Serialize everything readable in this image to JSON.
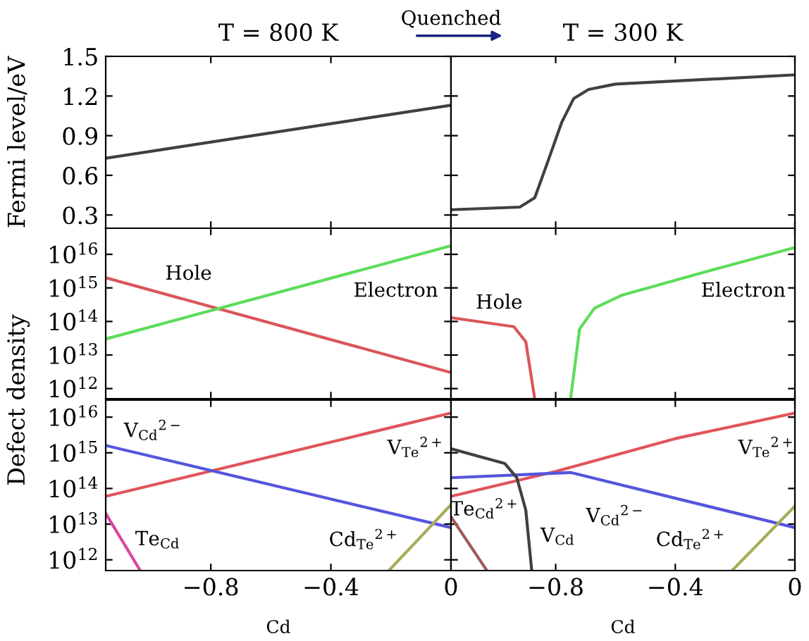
{
  "chart_data": [
    {
      "type": "line",
      "title": "T = 800 K",
      "ylabel": "Fermi level/eV",
      "xlim": [
        -1.15,
        0
      ],
      "ylim": [
        0.2,
        1.5
      ],
      "xticks": [
        {
          "value": -0.8,
          "label": null
        },
        {
          "value": -0.4,
          "label": null
        },
        {
          "value": 0,
          "label": null
        }
      ],
      "yticks": [
        0.3,
        0.6,
        0.9,
        1.2,
        1.5
      ],
      "tick_labels": "y",
      "series": [
        {
          "color": "#404040",
          "x": [
            -1.15,
            0
          ],
          "values": [
            0.73,
            1.13
          ]
        }
      ],
      "annotations": [
        "Quenched"
      ]
    },
    {
      "type": "line",
      "title": "T = 300 K",
      "xlim": [
        -1.15,
        0
      ],
      "ylim": [
        0.2,
        1.5
      ],
      "xticks": [
        {
          "value": -0.8,
          "label": null
        },
        {
          "value": -0.4,
          "label": null
        },
        {
          "value": 0,
          "label": null
        }
      ],
      "yticks": [
        {
          "value": 0.3,
          "label": null
        },
        {
          "value": 0.6,
          "label": null
        },
        {
          "value": 0.9,
          "label": null
        },
        {
          "value": 1.2,
          "label": null
        },
        {
          "value": 1.5,
          "label": null
        }
      ],
      "tick_labels": false,
      "series": [
        {
          "color": "#404040",
          "x": [
            -1.15,
            -0.92,
            -0.87,
            -0.83,
            -0.78,
            -0.74,
            -0.69,
            -0.6,
            0
          ],
          "values": [
            0.34,
            0.36,
            0.43,
            0.68,
            1.0,
            1.18,
            1.25,
            1.29,
            1.36
          ]
        }
      ]
    },
    {
      "type": "line",
      "log": "y",
      "xlim": [
        -1.15,
        0
      ],
      "ylim": [
        500000000000.0,
        6e+16
      ],
      "xticks": [
        {
          "value": -0.8,
          "label": null
        },
        {
          "value": -0.4,
          "label": null
        },
        {
          "value": 0,
          "label": null
        }
      ],
      "yticks": [
        {
          "value": 1000000000000.0,
          "label": "10$^{12}$"
        },
        {
          "value": 10000000000000.0,
          "label": "10$^{13}$"
        },
        {
          "value": 100000000000000.0,
          "label": "10$^{14}$"
        },
        {
          "value": 1000000000000000.0,
          "label": "10$^{15}$"
        },
        {
          "value": 1e+16,
          "label": "10$^{16}$"
        }
      ],
      "tick_labels": "y",
      "series": [
        {
          "color": "#d9565a",
          "x": [
            -1.15,
            0
          ],
          "values": [
            2000000000000000.0,
            3000000000000.0
          ]
        },
        {
          "color": "#5ddc5a",
          "x": [
            -1.15,
            0
          ],
          "values": [
            30000000000000.0,
            1.8e+16
          ]
        }
      ],
      "annotations": [
        "Hole",
        "Electron"
      ]
    },
    {
      "type": "line",
      "log": "y",
      "xlim": [
        -1.15,
        0
      ],
      "ylim": [
        500000000000.0,
        6e+16
      ],
      "xticks": [
        {
          "value": -0.8,
          "label": null
        },
        {
          "value": -0.4,
          "label": null
        },
        {
          "value": 0,
          "label": null
        }
      ],
      "yticks": [
        {
          "value": 1000000000000.0,
          "label": null
        },
        {
          "value": 10000000000000.0,
          "label": null
        },
        {
          "value": 100000000000000.0,
          "label": null
        },
        {
          "value": 1000000000000000.0,
          "label": null
        },
        {
          "value": 1e+16,
          "label": null
        }
      ],
      "tick_labels": false,
      "series": [
        {
          "color": "#d9565a",
          "x": [
            -1.15,
            -0.94,
            -0.9,
            -0.87
          ],
          "values": [
            130000000000000.0,
            70000000000000.0,
            25000000000000.0,
            500000000000.0
          ]
        },
        {
          "color": "#5ddc5a",
          "x": [
            -0.75,
            -0.72,
            -0.67,
            -0.58,
            -0.3,
            0
          ],
          "values": [
            500000000000.0,
            60000000000000.0,
            250000000000000.0,
            600000000000000.0,
            3000000000000000.0,
            1.6e+16
          ]
        }
      ],
      "annotations": [
        "Hole",
        "Electron"
      ]
    },
    {
      "type": "line",
      "log": "y",
      "xlabel": "Cd",
      "ylabel": "Defect density",
      "xlim": [
        -1.15,
        0
      ],
      "ylim": [
        500000000000.0,
        3e+16
      ],
      "xticks": [
        {
          "value": -0.8,
          "label": "−0.8"
        },
        {
          "value": -0.4,
          "label": "−0.4"
        },
        0
      ],
      "yticks": [
        {
          "value": 1000000000000.0,
          "label": "10$^{12}$"
        },
        {
          "value": 10000000000000.0,
          "label": "10$^{13}$"
        },
        {
          "value": 100000000000000.0,
          "label": "10$^{14}$"
        },
        {
          "value": 1000000000000000.0,
          "label": "10$^{15}$"
        },
        {
          "value": 1e+16,
          "label": "10$^{16}$"
        }
      ],
      "series": [
        {
          "color": "#e0555a",
          "x": [
            -1.15,
            0
          ],
          "values": [
            60000000000000.0,
            1.3e+16
          ]
        },
        {
          "color": "#5555dd",
          "x": [
            -1.15,
            0
          ],
          "values": [
            1600000000000000.0,
            8000000000000.0
          ]
        },
        {
          "color": "#d8489e",
          "x": [
            -1.15,
            -1.035
          ],
          "values": [
            20000000000000.0,
            500000000000.0
          ]
        },
        {
          "color": "#a8ac58",
          "x": [
            -0.207,
            0
          ],
          "values": [
            500000000000.0,
            35000000000000.0
          ]
        }
      ],
      "annotations": [
        "V$_{Cd}$$^{2−}$",
        "V$_{Te}$$^{2+}$",
        "Te$_{Cd}$",
        "Cd$_{Te}$$^{2+}$"
      ]
    },
    {
      "type": "line",
      "log": "y",
      "xlabel": "Cd",
      "xlim": [
        -1.15,
        0
      ],
      "ylim": [
        500000000000.0,
        3e+16
      ],
      "xticks": [
        {
          "value": -0.8,
          "label": "−0.8"
        },
        {
          "value": -0.4,
          "label": "−0.4"
        },
        0
      ],
      "yticks": [
        {
          "value": 1000000000000.0,
          "label": null
        },
        {
          "value": 10000000000000.0,
          "label": null
        },
        {
          "value": 100000000000000.0,
          "label": null
        },
        {
          "value": 1000000000000000.0,
          "label": null
        },
        {
          "value": 1e+16,
          "label": null
        }
      ],
      "tick_labels": "x",
      "series": [
        {
          "color": "#e0555a",
          "x": [
            -1.15,
            -0.8,
            -0.4,
            0
          ],
          "values": [
            60000000000000.0,
            300000000000000.0,
            2500000000000000.0,
            1.3e+16
          ]
        },
        {
          "color": "#5555dd",
          "x": [
            -1.15,
            -0.75,
            0
          ],
          "values": [
            200000000000000.0,
            280000000000000.0,
            8000000000000.0
          ]
        },
        {
          "color": "#404040",
          "x": [
            -1.15,
            -0.97,
            -0.93,
            -0.9,
            -0.88
          ],
          "values": [
            1300000000000000.0,
            500000000000000.0,
            200000000000000.0,
            25000000000000.0,
            500000000000.0
          ]
        },
        {
          "color": "#a05a5a",
          "x": [
            -1.15,
            -1.03
          ],
          "values": [
            16000000000000.0,
            500000000000.0
          ]
        },
        {
          "color": "#a8ac58",
          "x": [
            -0.21,
            0
          ],
          "values": [
            500000000000.0,
            32000000000000.0
          ]
        }
      ],
      "annotations": [
        "Te$_{Cd}$$^{2+}$",
        "V$_{Cd}$",
        "V$_{Cd}$$^{2−}$",
        "Cd$_{Te}$$^{2+}$",
        "V$_{Te}$$^{2+}$"
      ]
    }
  ]
}
